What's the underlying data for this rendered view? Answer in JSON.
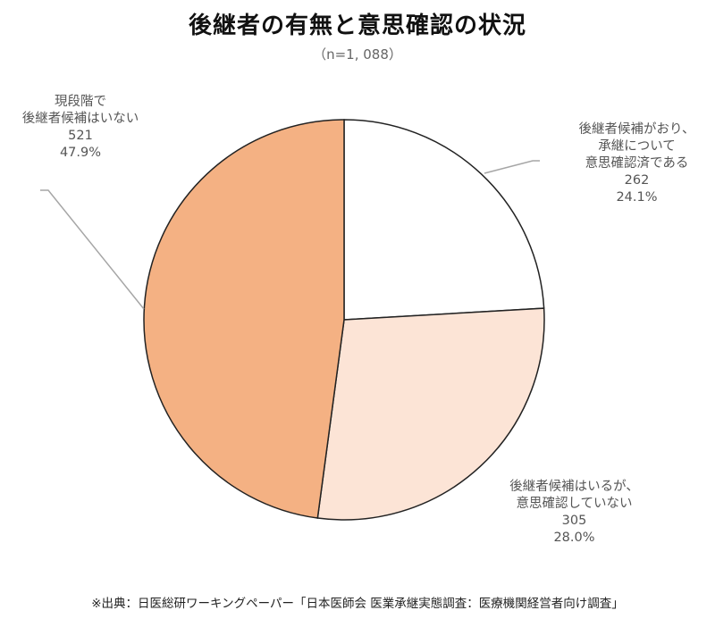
{
  "title": "後継者の有無と意思確認の状況",
  "subtitle": "（n=1, 088）",
  "source": "※出典：日医総研ワーキングペーパー「日本医師会 医業承継実態調査：医療機関経営者向け調査」",
  "chart_data": {
    "type": "pie",
    "title": "後継者の有無と意思確認の状況",
    "subtitle": "(n=1,088)",
    "n": 1088,
    "start_angle": "12 o'clock, clockwise",
    "slices": [
      {
        "label": "後継者候補がおり、承継について意思確認済である",
        "value": 262,
        "percent": 24.1,
        "color": "#ffffff"
      },
      {
        "label": "後継者候補はいるが、意思確認していない",
        "value": 305,
        "percent": 28.0,
        "color": "#fce4d6"
      },
      {
        "label": "現段階で後継者候補はいない",
        "value": 521,
        "percent": 47.9,
        "color": "#f4b183"
      }
    ],
    "categories": [
      "後継者候補がおり、承継について意思確認済である",
      "後継者候補はいるが、意思確認していない",
      "現段階で後継者候補はいない"
    ],
    "values": [
      262,
      305,
      521
    ],
    "legend": "none (data labels)"
  },
  "labels": {
    "confirmed": {
      "line1": "後継者候補がおり、",
      "line2": "承継について",
      "line3": "意思確認済である",
      "count": "262",
      "percent": "24.1%"
    },
    "unconfirmed": {
      "line1": "後継者候補はいるが、",
      "line2": "意思確認していない",
      "count": "305",
      "percent": "28.0%"
    },
    "none": {
      "line1": "現段階で",
      "line2": "後継者候補はいない",
      "count": "521",
      "percent": "47.9%"
    }
  }
}
